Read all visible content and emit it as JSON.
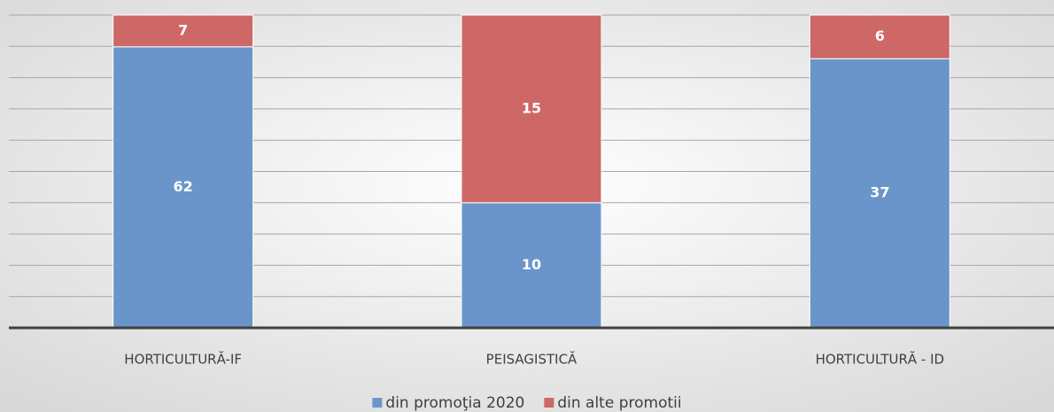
{
  "chart_data": {
    "type": "bar",
    "stacked": "percent",
    "categories": [
      "HORTICULTURĂ-IF",
      "PEISAGISTICĂ",
      "HORTICULTURĂ - ID"
    ],
    "series": [
      {
        "name": "din promoţia 2020",
        "color": "#6a95ca",
        "values": [
          62,
          10,
          37
        ]
      },
      {
        "name": "din alte promotii",
        "color": "#cd6866",
        "values": [
          7,
          15,
          6
        ]
      }
    ],
    "ylim": [
      0,
      100
    ],
    "yticks": [
      0,
      10,
      20,
      30,
      40,
      50,
      60,
      70,
      80,
      90,
      100
    ],
    "grid": true,
    "legend": "bottom"
  }
}
